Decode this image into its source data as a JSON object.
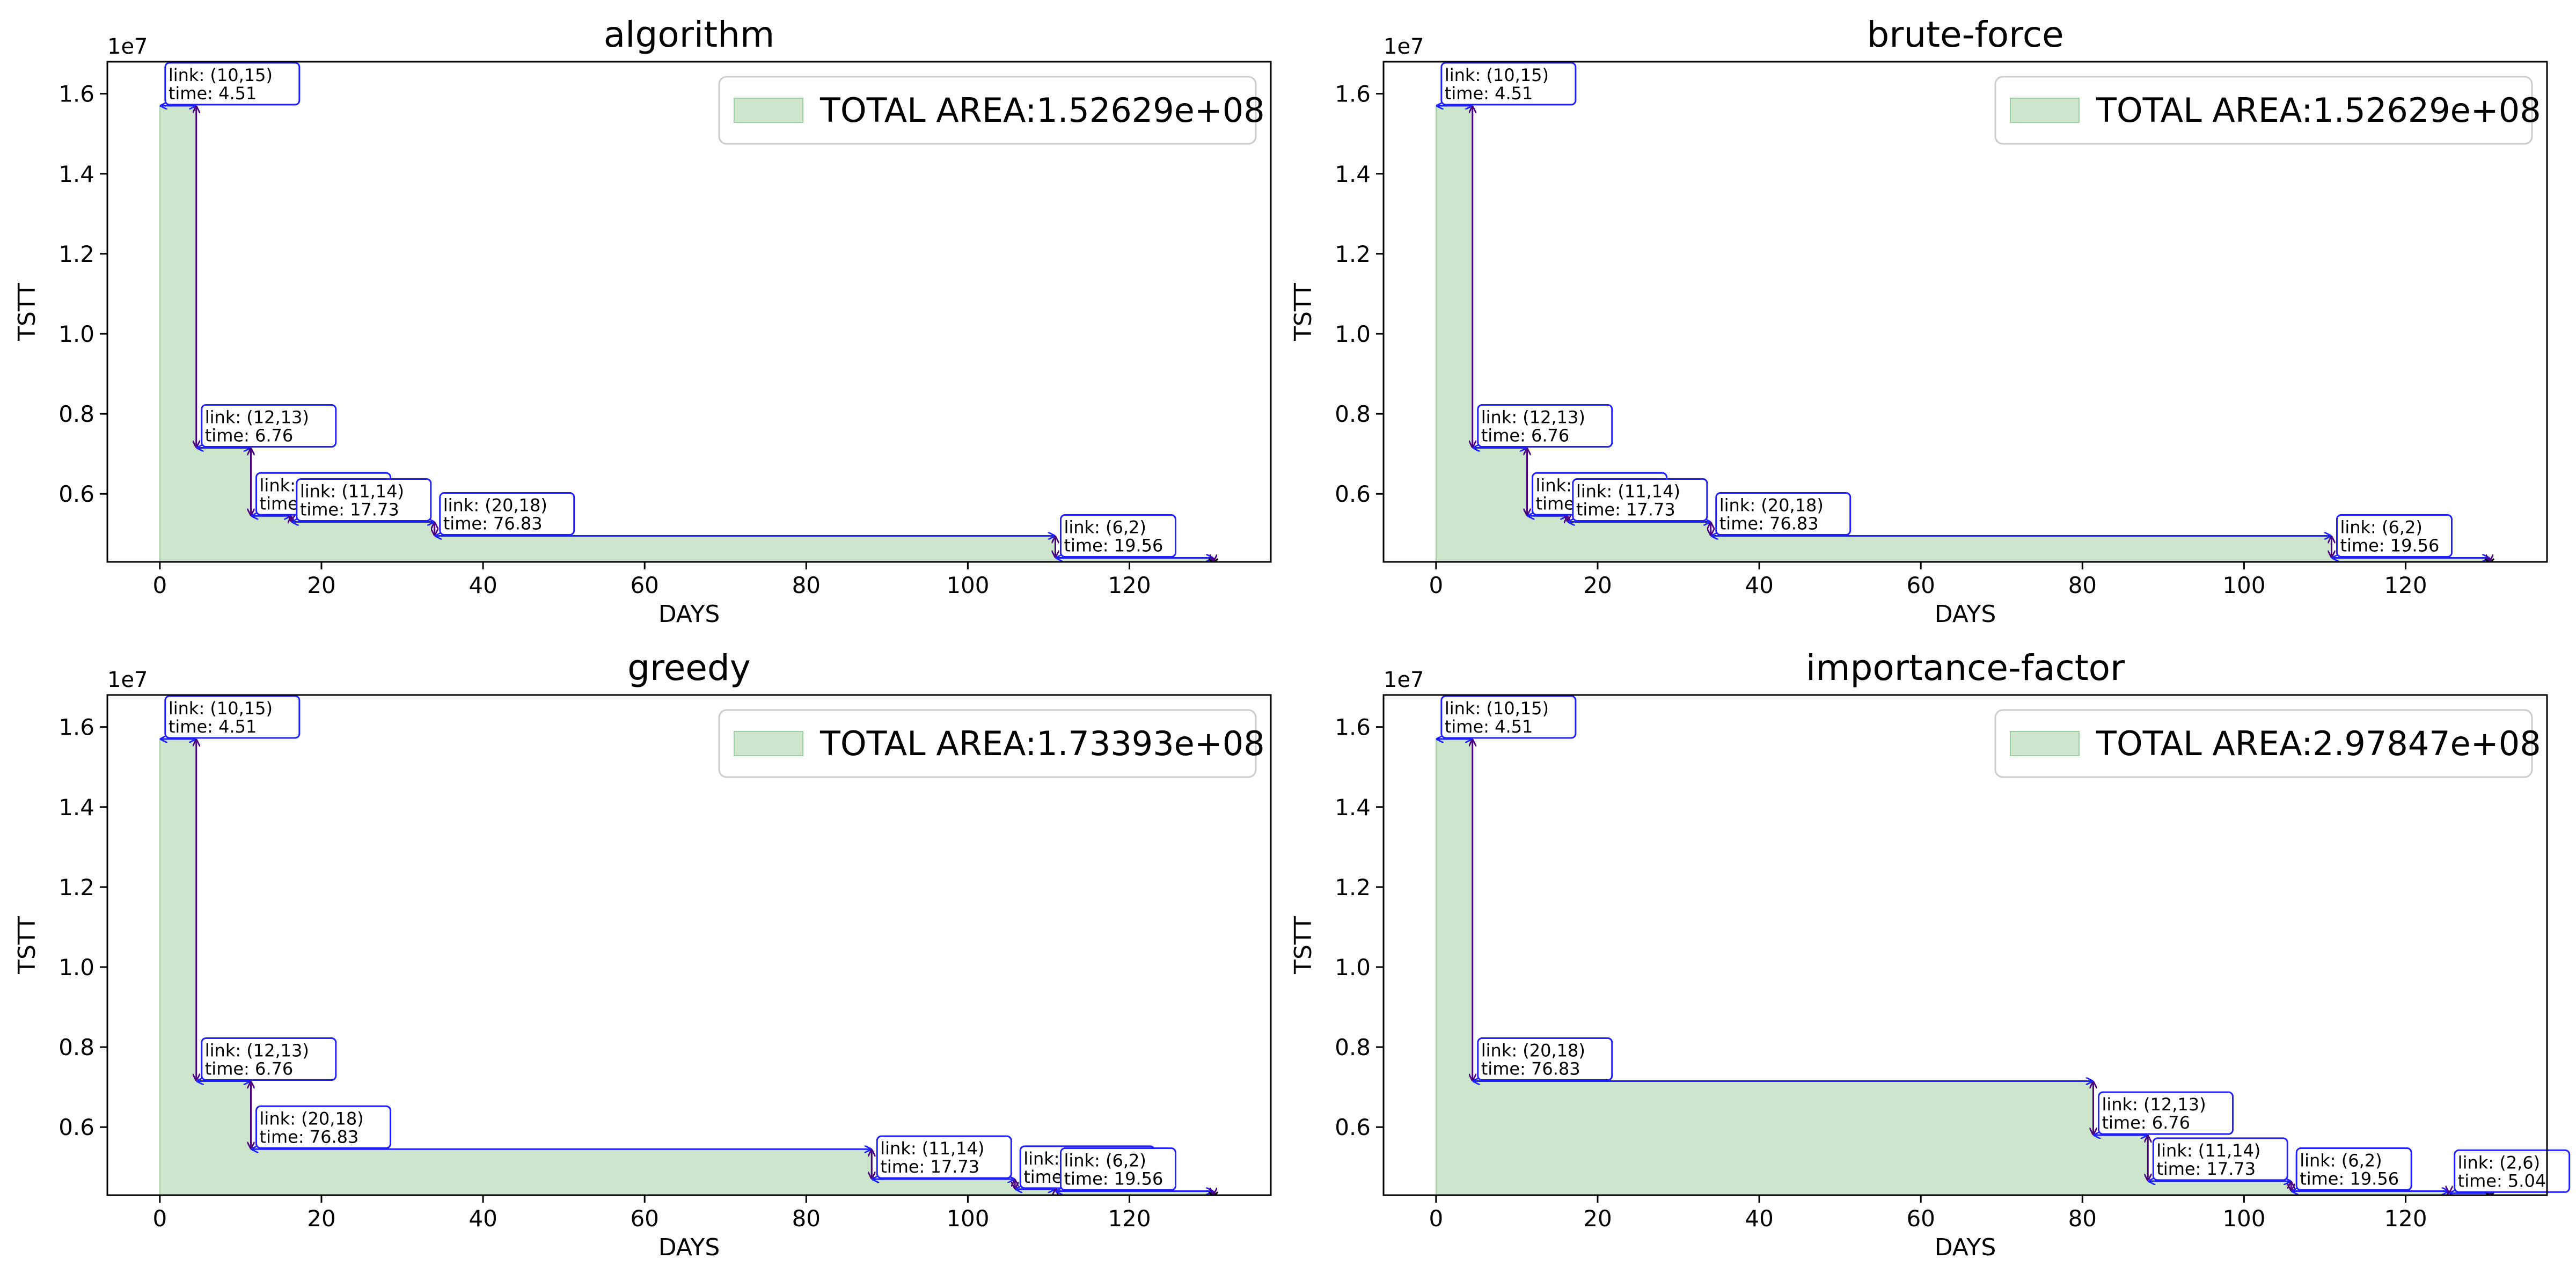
{
  "colors": {
    "fill": "#cde5cd",
    "fill_edge": "#9ecf9e",
    "arrow": "#1f1fff",
    "vline": "#4b0082",
    "marker": "#6a0d6a"
  },
  "chart_data": [
    {
      "type": "area",
      "title": "algorithm",
      "xlabel": "DAYS",
      "ylabel": "TSTT",
      "y_offset_label": "1e7",
      "xlim": [
        -6.5,
        137.5
      ],
      "ylim": [
        4300000,
        16800000
      ],
      "xticks": [
        0,
        20,
        40,
        60,
        80,
        100,
        120
      ],
      "xtick_labels": [
        "0",
        "20",
        "40",
        "60",
        "80",
        "100",
        "120"
      ],
      "yticks": [
        6000000,
        8000000,
        10000000,
        12000000,
        14000000,
        16000000
      ],
      "ytick_labels": [
        "0.6",
        "0.8",
        "1.0",
        "1.2",
        "1.4",
        "1.6"
      ],
      "legend": "TOTAL AREA:1.52629e+08",
      "legend_placement": "top-right",
      "steps": [
        {
          "link": "link: (10,15)",
          "time": "time: 4.51",
          "x0": 0,
          "x1": 4.51,
          "y": 15700000
        },
        {
          "link": "link: (12,13)",
          "time": "time: 6.76",
          "x0": 4.51,
          "x1": 11.27,
          "y": 7150000
        },
        {
          "link": "link: (12,13)",
          "time": "time: 5.00",
          "x0": 11.27,
          "x1": 16.27,
          "y": 5450000
        },
        {
          "link": "link: (11,14)",
          "time": "time: 17.73",
          "x0": 16.27,
          "x1": 34.0,
          "y": 5300000
        },
        {
          "link": "link: (20,18)",
          "time": "time: 76.83",
          "x0": 34.0,
          "x1": 110.83,
          "y": 4950000
        },
        {
          "link": "link: (6,2)",
          "time": "time: 19.56",
          "x0": 110.83,
          "x1": 130.39,
          "y": 4400000
        }
      ],
      "end": {
        "x": 130.39,
        "y": 4300000
      }
    },
    {
      "type": "area",
      "title": "brute-force",
      "xlabel": "DAYS",
      "ylabel": "TSTT",
      "y_offset_label": "1e7",
      "xlim": [
        -6.5,
        137.5
      ],
      "ylim": [
        4300000,
        16800000
      ],
      "xticks": [
        0,
        20,
        40,
        60,
        80,
        100,
        120
      ],
      "xtick_labels": [
        "0",
        "20",
        "40",
        "60",
        "80",
        "100",
        "120"
      ],
      "yticks": [
        6000000,
        8000000,
        10000000,
        12000000,
        14000000,
        16000000
      ],
      "ytick_labels": [
        "0.6",
        "0.8",
        "1.0",
        "1.2",
        "1.4",
        "1.6"
      ],
      "legend": "TOTAL AREA:1.52629e+08",
      "legend_placement": "top-right",
      "steps": [
        {
          "link": "link: (10,15)",
          "time": "time: 4.51",
          "x0": 0,
          "x1": 4.51,
          "y": 15700000
        },
        {
          "link": "link: (12,13)",
          "time": "time: 6.76",
          "x0": 4.51,
          "x1": 11.27,
          "y": 7150000
        },
        {
          "link": "link: (12,13)",
          "time": "time: 5.00",
          "x0": 11.27,
          "x1": 16.27,
          "y": 5450000
        },
        {
          "link": "link: (11,14)",
          "time": "time: 17.73",
          "x0": 16.27,
          "x1": 34.0,
          "y": 5300000
        },
        {
          "link": "link: (20,18)",
          "time": "time: 76.83",
          "x0": 34.0,
          "x1": 110.83,
          "y": 4950000
        },
        {
          "link": "link: (6,2)",
          "time": "time: 19.56",
          "x0": 110.83,
          "x1": 130.39,
          "y": 4400000
        }
      ],
      "end": {
        "x": 130.39,
        "y": 4300000
      }
    },
    {
      "type": "area",
      "title": "greedy",
      "xlabel": "DAYS",
      "ylabel": "TSTT",
      "y_offset_label": "1e7",
      "xlim": [
        -6.5,
        137.5
      ],
      "ylim": [
        4300000,
        16800000
      ],
      "xticks": [
        0,
        20,
        40,
        60,
        80,
        100,
        120
      ],
      "xtick_labels": [
        "0",
        "20",
        "40",
        "60",
        "80",
        "100",
        "120"
      ],
      "yticks": [
        6000000,
        8000000,
        10000000,
        12000000,
        14000000,
        16000000
      ],
      "ytick_labels": [
        "0.6",
        "0.8",
        "1.0",
        "1.2",
        "1.4",
        "1.6"
      ],
      "legend": "TOTAL AREA:1.73393e+08",
      "legend_placement": "top-right",
      "steps": [
        {
          "link": "link: (10,15)",
          "time": "time: 4.51",
          "x0": 0,
          "x1": 4.51,
          "y": 15700000
        },
        {
          "link": "link: (12,13)",
          "time": "time: 6.76",
          "x0": 4.51,
          "x1": 11.27,
          "y": 7150000
        },
        {
          "link": "link: (20,18)",
          "time": "time: 76.83",
          "x0": 11.27,
          "x1": 88.1,
          "y": 5450000
        },
        {
          "link": "link: (11,14)",
          "time": "time: 17.73",
          "x0": 88.1,
          "x1": 105.83,
          "y": 4700000
        },
        {
          "link": "link: (12,13)",
          "time": "time: 5.00",
          "x0": 105.83,
          "x1": 110.83,
          "y": 4450000
        },
        {
          "link": "link: (6,2)",
          "time": "time: 19.56",
          "x0": 110.83,
          "x1": 130.39,
          "y": 4400000
        }
      ],
      "end": {
        "x": 130.39,
        "y": 4300000
      }
    },
    {
      "type": "area",
      "title": "importance-factor",
      "xlabel": "DAYS",
      "ylabel": "TSTT",
      "y_offset_label": "1e7",
      "xlim": [
        -6.5,
        137.5
      ],
      "ylim": [
        4300000,
        16800000
      ],
      "xticks": [
        0,
        20,
        40,
        60,
        80,
        100,
        120
      ],
      "xtick_labels": [
        "0",
        "20",
        "40",
        "60",
        "80",
        "100",
        "120"
      ],
      "yticks": [
        6000000,
        8000000,
        10000000,
        12000000,
        14000000,
        16000000
      ],
      "ytick_labels": [
        "0.6",
        "0.8",
        "1.0",
        "1.2",
        "1.4",
        "1.6"
      ],
      "legend": "TOTAL AREA:2.97847e+08",
      "legend_placement": "top-right",
      "steps": [
        {
          "link": "link: (10,15)",
          "time": "time: 4.51",
          "x0": 0,
          "x1": 4.51,
          "y": 15700000
        },
        {
          "link": "link: (20,18)",
          "time": "time: 76.83",
          "x0": 4.51,
          "x1": 81.34,
          "y": 7150000
        },
        {
          "link": "link: (12,13)",
          "time": "time: 6.76",
          "x0": 81.34,
          "x1": 88.1,
          "y": 5800000
        },
        {
          "link": "link: (11,14)",
          "time": "time: 17.73",
          "x0": 88.1,
          "x1": 105.83,
          "y": 4650000
        },
        {
          "link": "link: (6,2)",
          "time": "time: 19.56",
          "x0": 105.83,
          "x1": 125.39,
          "y": 4400000
        },
        {
          "link": "link: (2,6)",
          "time": "time: 5.04",
          "x0": 125.39,
          "x1": 130.43,
          "y": 4350000
        }
      ],
      "end": {
        "x": 130.43,
        "y": 4300000
      }
    }
  ]
}
